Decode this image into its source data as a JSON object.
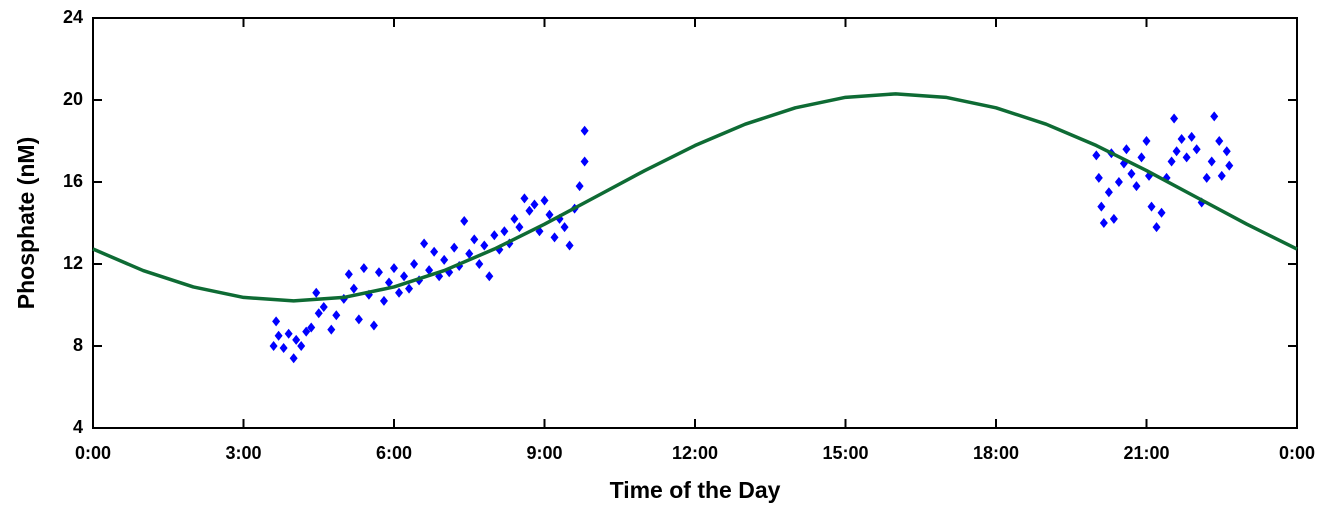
{
  "chart_data": {
    "type": "scatter",
    "x_label": "Time of the Day",
    "y_label": "Phosphate (nM)",
    "xlim": [
      0,
      24
    ],
    "ylim": [
      4,
      24
    ],
    "xticks": [
      {
        "value": 0,
        "label": "0:00"
      },
      {
        "value": 3,
        "label": "3:00"
      },
      {
        "value": 6,
        "label": "6:00"
      },
      {
        "value": 9,
        "label": "9:00"
      },
      {
        "value": 12,
        "label": "12:00"
      },
      {
        "value": 15,
        "label": "15:00"
      },
      {
        "value": 18,
        "label": "18:00"
      },
      {
        "value": 21,
        "label": "21:00"
      },
      {
        "value": 24,
        "label": "0:00"
      }
    ],
    "yticks": [
      4,
      8,
      12,
      16,
      20,
      24
    ],
    "series": [
      {
        "type": "scatter",
        "color": "#0000ff",
        "x": [
          3.6,
          3.65,
          3.7,
          3.8,
          3.9,
          4.0,
          4.05,
          4.15,
          4.25,
          4.35,
          4.45,
          4.5,
          4.6,
          4.75,
          4.85,
          5.0,
          5.1,
          5.2,
          5.3,
          5.4,
          5.5,
          5.6,
          5.7,
          5.8,
          5.9,
          6.0,
          6.1,
          6.2,
          6.3,
          6.4,
          6.5,
          6.6,
          6.7,
          6.8,
          6.9,
          7.0,
          7.1,
          7.2,
          7.3,
          7.4,
          7.5,
          7.6,
          7.7,
          7.8,
          7.9,
          8.0,
          8.1,
          8.2,
          8.3,
          8.4,
          8.5,
          8.6,
          8.7,
          8.8,
          8.9,
          9.0,
          9.1,
          9.2,
          9.3,
          9.4,
          9.5,
          9.6,
          9.7,
          9.8,
          9.8,
          20.0,
          20.05,
          20.1,
          20.15,
          20.25,
          20.3,
          20.35,
          20.45,
          20.55,
          20.6,
          20.7,
          20.8,
          20.9,
          21.0,
          21.05,
          21.1,
          21.2,
          21.3,
          21.4,
          21.5,
          21.55,
          21.6,
          21.7,
          21.8,
          21.9,
          22.0,
          22.1,
          22.2,
          22.3,
          22.35,
          22.45,
          22.5,
          22.6,
          22.65
        ],
        "values": [
          8.0,
          9.2,
          8.5,
          7.9,
          8.6,
          7.4,
          8.3,
          8.0,
          8.7,
          8.9,
          10.6,
          9.6,
          9.9,
          8.8,
          9.5,
          10.3,
          11.5,
          10.8,
          9.3,
          11.8,
          10.5,
          9.0,
          11.6,
          10.2,
          11.1,
          11.8,
          10.6,
          11.4,
          10.8,
          12.0,
          11.2,
          13.0,
          11.7,
          12.6,
          11.4,
          12.2,
          11.6,
          12.8,
          11.9,
          14.1,
          12.5,
          13.2,
          12.0,
          12.9,
          11.4,
          13.4,
          12.7,
          13.6,
          13.0,
          14.2,
          13.8,
          15.2,
          14.6,
          14.9,
          13.6,
          15.1,
          14.4,
          13.3,
          14.2,
          13.8,
          12.9,
          14.7,
          15.8,
          18.5,
          17.0,
          17.3,
          16.2,
          14.8,
          14.0,
          15.5,
          17.4,
          14.2,
          16.0,
          16.9,
          17.6,
          16.4,
          15.8,
          17.2,
          18.0,
          16.3,
          14.8,
          13.8,
          14.5,
          16.2,
          17.0,
          19.1,
          17.5,
          18.1,
          17.2,
          18.2,
          17.6,
          15.0,
          16.2,
          17.0,
          19.2,
          18.0,
          16.3,
          17.5,
          16.8
        ]
      },
      {
        "type": "line",
        "color": "#0e6b34",
        "x": [
          0,
          1,
          2,
          3,
          4,
          5,
          6,
          7,
          8,
          9,
          10,
          11,
          12,
          13,
          14,
          15,
          16,
          17,
          18,
          19,
          20,
          21,
          22,
          23,
          24
        ],
        "values": [
          12.73,
          11.68,
          10.88,
          10.37,
          10.2,
          10.37,
          10.88,
          11.68,
          12.73,
          13.94,
          15.25,
          16.56,
          17.78,
          18.82,
          19.62,
          20.13,
          20.3,
          20.13,
          19.62,
          18.82,
          17.78,
          16.56,
          15.25,
          13.94,
          12.73
        ]
      }
    ]
  }
}
